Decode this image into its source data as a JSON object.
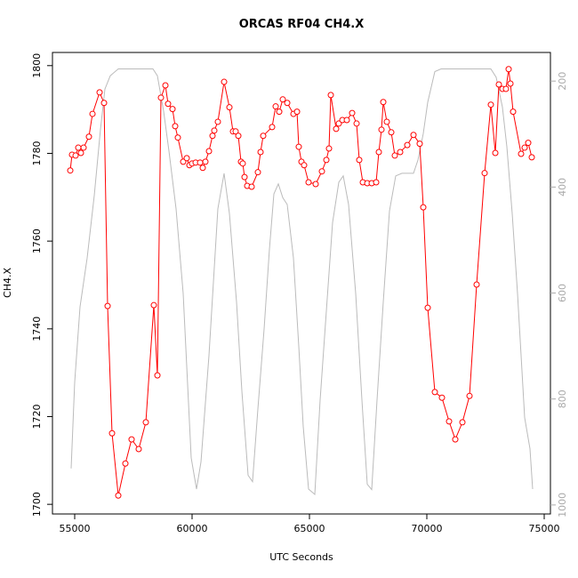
{
  "chart_data": {
    "type": "line",
    "title": "ORCAS RF04 CH4.X",
    "xlabel": "UTC Seconds",
    "ylabel": "CH4.X",
    "xlim": [
      54053,
      75265
    ],
    "xticks": [
      55000,
      60000,
      65000,
      70000,
      75000
    ],
    "ylim": [
      1697.8,
      1803
    ],
    "yticks": [
      1700,
      1720,
      1740,
      1760,
      1780,
      1800
    ],
    "y2lim": [
      1017,
      146
    ],
    "y2ticks": [
      200,
      400,
      600,
      800,
      1000
    ],
    "series": [
      {
        "color": "#bbbbbb",
        "axis": "y2",
        "markers": false,
        "x": [
          54848,
          55000,
          55227,
          55530,
          55833,
          56098,
          56288,
          56515,
          56856,
          58333,
          58523,
          58788,
          59015,
          59318,
          59621,
          59962,
          60189,
          60379,
          60720,
          61098,
          61364,
          61591,
          61894,
          62121,
          62386,
          62576,
          62803,
          63068,
          63295,
          63485,
          63674,
          63864,
          64053,
          64318,
          64545,
          64735,
          64962,
          65227,
          65455,
          65720,
          65985,
          66250,
          66439,
          66667,
          66970,
          67235,
          67462,
          67652,
          67879,
          68144,
          68409,
          68674,
          68939,
          69432,
          69621,
          69848,
          70038,
          70341,
          70606,
          72727,
          72955,
          73220,
          73409,
          73636,
          73864,
          74167,
          74394,
          74508
        ],
        "values": [
          931,
          768,
          626,
          534,
          416,
          291,
          215,
          190,
          177,
          177,
          190,
          257,
          332,
          441,
          601,
          911,
          970,
          919,
          718,
          441,
          374,
          450,
          617,
          785,
          944,
          956,
          819,
          668,
          517,
          413,
          394,
          420,
          433,
          534,
          701,
          852,
          970,
          980,
          802,
          634,
          467,
          391,
          379,
          433,
          601,
          802,
          961,
          971,
          802,
          617,
          445,
          379,
          374,
          374,
          349,
          299,
          240,
          182,
          177,
          177,
          193,
          249,
          324,
          450,
          601,
          835,
          894,
          970
        ]
      },
      {
        "color": "#ff0000",
        "axis": "y",
        "markers": true,
        "x": [
          54811,
          54886,
          55038,
          55152,
          55265,
          55379,
          55606,
          55758,
          56061,
          56250,
          56402,
          56591,
          56856,
          57159,
          57424,
          57727,
          58030,
          58371,
          58523,
          58674,
          58864,
          58977,
          59167,
          59280,
          59394,
          59621,
          59773,
          59886,
          60000,
          60152,
          60341,
          60455,
          60568,
          60720,
          60871,
          60947,
          61098,
          61364,
          61591,
          61742,
          61856,
          61970,
          62083,
          62159,
          62235,
          62348,
          62538,
          62803,
          62917,
          63030,
          63409,
          63561,
          63712,
          63864,
          64053,
          64318,
          64470,
          64545,
          64659,
          64773,
          64962,
          65265,
          65530,
          65720,
          65833,
          65909,
          66136,
          66250,
          66402,
          66591,
          66818,
          67008,
          67121,
          67273,
          67462,
          67652,
          67841,
          67955,
          68068,
          68144,
          68295,
          68485,
          68636,
          68864,
          69167,
          69432,
          69697,
          69848,
          70038,
          70341,
          70644,
          70947,
          71212,
          71515,
          71818,
          72121,
          72462,
          72727,
          72917,
          73068,
          73220,
          73371,
          73485,
          73561,
          73674,
          74015,
          74167,
          74318,
          74470
        ],
        "values": [
          1776.1,
          1779.7,
          1779.5,
          1781.3,
          1780.1,
          1781.3,
          1783.8,
          1789.0,
          1793.9,
          1791.5,
          1745.2,
          1716.2,
          1702.0,
          1709.3,
          1714.8,
          1712.6,
          1718.7,
          1745.4,
          1729.4,
          1792.7,
          1795.5,
          1791.3,
          1790.1,
          1786.2,
          1783.6,
          1778.1,
          1778.9,
          1777.3,
          1777.7,
          1777.9,
          1777.9,
          1776.7,
          1778.1,
          1780.5,
          1784.0,
          1785.2,
          1787.2,
          1796.3,
          1790.5,
          1785.0,
          1785.0,
          1784.0,
          1778.1,
          1777.7,
          1774.6,
          1772.6,
          1772.4,
          1775.7,
          1780.3,
          1784.0,
          1786.0,
          1790.7,
          1789.5,
          1792.3,
          1791.5,
          1789.0,
          1789.5,
          1781.5,
          1778.1,
          1777.3,
          1773.4,
          1773.0,
          1775.9,
          1778.5,
          1781.1,
          1793.3,
          1785.6,
          1786.8,
          1787.6,
          1787.6,
          1789.2,
          1786.8,
          1778.5,
          1773.4,
          1773.2,
          1773.2,
          1773.4,
          1780.3,
          1785.4,
          1791.7,
          1787.2,
          1784.8,
          1779.5,
          1780.3,
          1781.9,
          1784.2,
          1782.2,
          1767.7,
          1744.8,
          1725.6,
          1724.3,
          1718.9,
          1714.8,
          1718.7,
          1724.7,
          1750.1,
          1775.5,
          1791.1,
          1780.1,
          1795.7,
          1794.7,
          1794.7,
          1799.2,
          1795.9,
          1789.5,
          1779.9,
          1781.3,
          1782.4,
          1779.1
        ]
      }
    ]
  }
}
